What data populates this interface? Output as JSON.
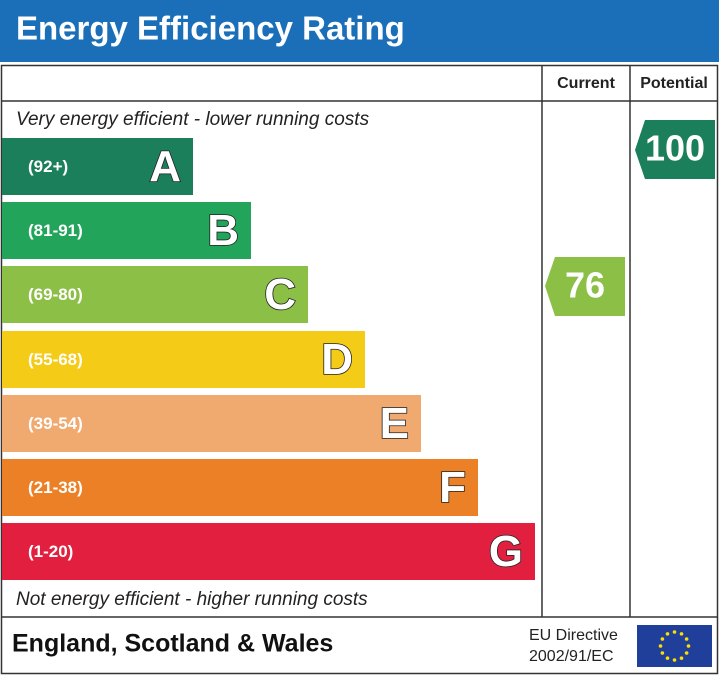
{
  "chart_data": {
    "type": "epc",
    "title": "Energy Efficiency Rating",
    "column_headers": [
      "Current",
      "Potential"
    ],
    "top_note": "Very energy efficient - lower running costs",
    "bottom_note": "Not energy efficient - higher running costs",
    "bands": [
      {
        "range": "(92+)",
        "letter": "A",
        "color": "#1a7f5a"
      },
      {
        "range": "(81-91)",
        "letter": "B",
        "color": "#22a55a"
      },
      {
        "range": "(69-80)",
        "letter": "C",
        "color": "#8cbf45"
      },
      {
        "range": "(55-68)",
        "letter": "D",
        "color": "#f4cb17"
      },
      {
        "range": "(39-54)",
        "letter": "E",
        "color": "#f0a96f"
      },
      {
        "range": "(21-38)",
        "letter": "F",
        "color": "#ec8026"
      },
      {
        "range": "(1-20)",
        "letter": "G",
        "color": "#e21f3f"
      }
    ],
    "current": 76,
    "potential": 100,
    "footer": "England, Scotland & Wales",
    "directive": [
      "EU Directive",
      "2002/91/EC"
    ]
  }
}
